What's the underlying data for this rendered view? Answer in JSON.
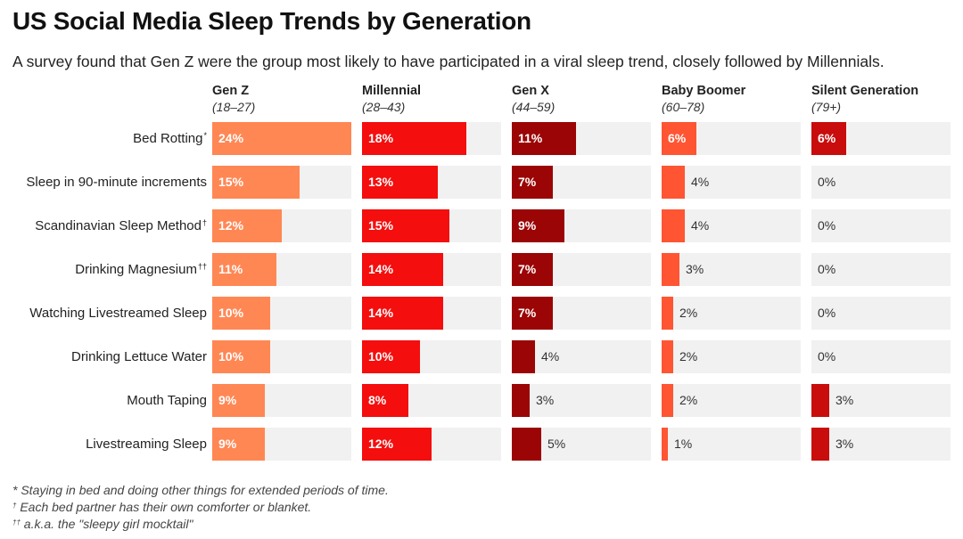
{
  "title": "US Social Media Sleep Trends by Generation",
  "subtitle": "A survey found that Gen Z were the group most likely to have participated in a viral sleep trend, closely followed by Millennials.",
  "footnotes": [
    {
      "mark": "*",
      "text": " Staying in bed and doing other things for extended periods of time."
    },
    {
      "mark": "†",
      "text": " Each bed partner has their own comforter or blanket."
    },
    {
      "mark": "††",
      "text": " a.k.a. the \"sleepy girl mocktail\""
    }
  ],
  "colors": {
    "gen_z": "#ff8754",
    "millennial": "#f40e0e",
    "gen_x": "#9b0505",
    "baby_boomer": "#ff5533",
    "silent": "#c90c0c",
    "track": "#f1f1f1"
  },
  "chart_data": {
    "type": "bar",
    "orientation": "horizontal",
    "value_format": "percent",
    "xlim": [
      0,
      24
    ],
    "categories": [
      {
        "label": "Bed Rotting",
        "mark": "*"
      },
      {
        "label": "Sleep in 90-minute increments",
        "mark": ""
      },
      {
        "label": "Scandinavian Sleep Method",
        "mark": "†"
      },
      {
        "label": "Drinking Magnesium",
        "mark": "††"
      },
      {
        "label": "Watching Livestreamed Sleep",
        "mark": ""
      },
      {
        "label": "Drinking Lettuce Water",
        "mark": ""
      },
      {
        "label": "Mouth Taping",
        "mark": ""
      },
      {
        "label": "Livestreaming Sleep",
        "mark": ""
      }
    ],
    "series": [
      {
        "name": "Gen Z",
        "age": "(18–27)",
        "color_key": "gen_z",
        "values": [
          24,
          15,
          12,
          11,
          10,
          10,
          9,
          9
        ]
      },
      {
        "name": "Millennial",
        "age": "(28–43)",
        "color_key": "millennial",
        "values": [
          18,
          13,
          15,
          14,
          14,
          10,
          8,
          12
        ]
      },
      {
        "name": "Gen X",
        "age": "(44–59)",
        "color_key": "gen_x",
        "values": [
          11,
          7,
          9,
          7,
          7,
          4,
          3,
          5
        ]
      },
      {
        "name": "Baby Boomer",
        "age": "(60–78)",
        "color_key": "baby_boomer",
        "values": [
          6,
          4,
          4,
          3,
          2,
          2,
          2,
          1
        ]
      },
      {
        "name": "Silent Generation",
        "age": "(79+)",
        "color_key": "silent",
        "values": [
          6,
          0,
          0,
          0,
          0,
          0,
          3,
          3
        ]
      }
    ]
  }
}
